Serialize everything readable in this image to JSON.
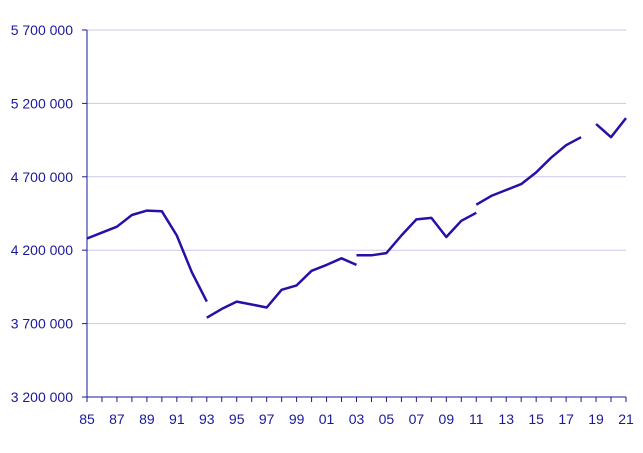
{
  "chart_data": {
    "type": "line",
    "title": "",
    "xlabel": "",
    "ylabel": "",
    "ylim": [
      3200000,
      5700000
    ],
    "xlim": [
      1985,
      2021
    ],
    "grid": "horizontal",
    "colors": {
      "line": "#2A0FA6",
      "axis": "#1A1A99",
      "label": "#1A1A99",
      "grid": "#C9C9E8"
    },
    "y_ticks": [
      {
        "value": 3200000,
        "label": "3 200 000"
      },
      {
        "value": 3700000,
        "label": "3 700 000"
      },
      {
        "value": 4200000,
        "label": "4 200 000"
      },
      {
        "value": 4700000,
        "label": "4 700 000"
      },
      {
        "value": 5200000,
        "label": "5 200 000"
      },
      {
        "value": 5700000,
        "label": "5 700 000"
      }
    ],
    "x_ticks": [
      {
        "value": 1985,
        "label": "85"
      },
      {
        "value": 1987,
        "label": "87"
      },
      {
        "value": 1989,
        "label": "89"
      },
      {
        "value": 1991,
        "label": "91"
      },
      {
        "value": 1993,
        "label": "93"
      },
      {
        "value": 1995,
        "label": "95"
      },
      {
        "value": 1997,
        "label": "97"
      },
      {
        "value": 1999,
        "label": "99"
      },
      {
        "value": 2001,
        "label": "01"
      },
      {
        "value": 2003,
        "label": "03"
      },
      {
        "value": 2005,
        "label": "05"
      },
      {
        "value": 2007,
        "label": "07"
      },
      {
        "value": 2009,
        "label": "09"
      },
      {
        "value": 2011,
        "label": "11"
      },
      {
        "value": 2013,
        "label": "13"
      },
      {
        "value": 2015,
        "label": "15"
      },
      {
        "value": 2017,
        "label": "17"
      },
      {
        "value": 2019,
        "label": "19"
      },
      {
        "value": 2021,
        "label": "21"
      }
    ],
    "series": [
      {
        "segments": [
          [
            [
              1985,
              4280000
            ],
            [
              1986,
              4320000
            ],
            [
              1987,
              4360000
            ],
            [
              1988,
              4440000
            ],
            [
              1989,
              4470000
            ],
            [
              1990,
              4465000
            ],
            [
              1991,
              4300000
            ],
            [
              1992,
              4050000
            ],
            [
              1993,
              3850000
            ]
          ],
          [
            [
              1993,
              3740000
            ],
            [
              1994,
              3800000
            ],
            [
              1995,
              3850000
            ],
            [
              1996,
              3830000
            ],
            [
              1997,
              3810000
            ],
            [
              1998,
              3930000
            ],
            [
              1999,
              3960000
            ],
            [
              2000,
              4060000
            ],
            [
              2001,
              4100000
            ],
            [
              2002,
              4145000
            ],
            [
              2003,
              4100000
            ]
          ],
          [
            [
              2003,
              4165000
            ],
            [
              2004,
              4165000
            ],
            [
              2005,
              4180000
            ],
            [
              2006,
              4300000
            ],
            [
              2007,
              4410000
            ],
            [
              2008,
              4420000
            ],
            [
              2009,
              4290000
            ],
            [
              2010,
              4400000
            ],
            [
              2011,
              4455000
            ]
          ],
          [
            [
              2011,
              4510000
            ],
            [
              2012,
              4570000
            ],
            [
              2013,
              4610000
            ],
            [
              2014,
              4650000
            ],
            [
              2015,
              4730000
            ],
            [
              2016,
              4830000
            ],
            [
              2017,
              4915000
            ],
            [
              2018,
              4970000
            ]
          ],
          [
            [
              2019,
              5060000
            ],
            [
              2020,
              4970000
            ],
            [
              2021,
              5100000
            ]
          ]
        ]
      }
    ]
  }
}
